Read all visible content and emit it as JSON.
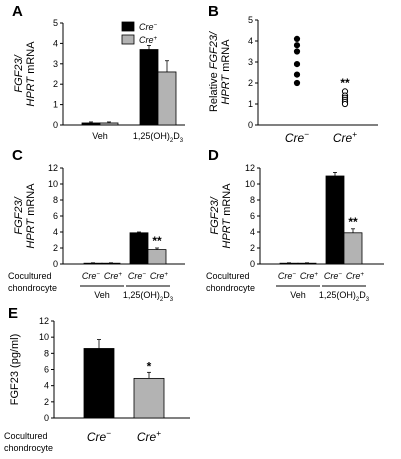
{
  "chart_data": [
    {
      "panel": "A",
      "type": "bar",
      "ylabel": "FGF23/ HPRT mRNA",
      "ylabel_parts": [
        "FGF23/",
        "HPRT",
        "mRNA"
      ],
      "ylim": [
        0,
        5
      ],
      "yticks": [
        "0",
        "1",
        "2",
        "3",
        "4",
        "5"
      ],
      "groups": [
        "Veh",
        "1,25(OH)2D3"
      ],
      "group_labels": [
        {
          "base": "Veh"
        },
        {
          "base": "1,25(OH)",
          "sub": "2",
          "tail": "D",
          "sub2": "3"
        }
      ],
      "legend": [
        {
          "name": "Cre−",
          "sup": "−",
          "color": "#000000"
        },
        {
          "name": "Cre+",
          "sup": "+",
          "color": "#b3b3b3"
        }
      ],
      "series": [
        {
          "name": "Cre−",
          "values": [
            0.1,
            3.7
          ],
          "errors": [
            0.05,
            0.2
          ]
        },
        {
          "name": "Cre+",
          "values": [
            0.1,
            2.6
          ],
          "errors": [
            0.05,
            0.55
          ]
        }
      ],
      "annotations": []
    },
    {
      "panel": "B",
      "type": "scatter",
      "ylabel": "Relative FGF23/ HPRT mRNA",
      "ylim": [
        0,
        5
      ],
      "yticks": [
        "0",
        "1",
        "2",
        "3",
        "4",
        "5"
      ],
      "categories": [
        "Cre−",
        "Cre+"
      ],
      "points": [
        {
          "category": "Cre−",
          "values": [
            4.1,
            3.8,
            3.5,
            2.9,
            2.4,
            2.0
          ]
        },
        {
          "category": "Cre+",
          "values": [
            1.6,
            1.4,
            1.3,
            1.2,
            1.1,
            1.0
          ]
        }
      ],
      "annotations": [
        {
          "text": "**",
          "category": "Cre+",
          "y": 2.0
        }
      ]
    },
    {
      "panel": "C",
      "type": "bar",
      "ylabel": "FGF23/ HPRT mRNA",
      "ylim": [
        0,
        12
      ],
      "yticks": [
        "0",
        "2",
        "4",
        "6",
        "8",
        "10",
        "12"
      ],
      "row_label": [
        "Cocultured",
        "chondrocyte"
      ],
      "groups": [
        "Veh",
        "1,25(OH)2D3"
      ],
      "series": [
        {
          "name": "Cre−",
          "values": [
            0.1,
            3.9
          ],
          "errors": [
            0.05,
            0.1
          ]
        },
        {
          "name": "Cre+",
          "values": [
            0.1,
            1.8
          ],
          "errors": [
            0.05,
            0.2
          ]
        }
      ],
      "annotations": [
        {
          "text": "**",
          "group": 1,
          "series": 1
        }
      ]
    },
    {
      "panel": "D",
      "type": "bar",
      "ylabel": "FGF23/ HPRT mRNA",
      "ylim": [
        0,
        12
      ],
      "yticks": [
        "0",
        "2",
        "4",
        "6",
        "8",
        "10",
        "12"
      ],
      "row_label": [
        "Cocultured",
        "chondrocyte"
      ],
      "groups": [
        "Veh",
        "1,25(OH)2D3"
      ],
      "series": [
        {
          "name": "Cre−",
          "values": [
            0.1,
            11.0
          ],
          "errors": [
            0.05,
            0.45
          ]
        },
        {
          "name": "Cre+",
          "values": [
            0.1,
            3.9
          ],
          "errors": [
            0.05,
            0.5
          ]
        }
      ],
      "annotations": [
        {
          "text": "**",
          "group": 1,
          "series": 1
        }
      ]
    },
    {
      "panel": "E",
      "type": "bar",
      "ylabel": "FGF23 (pg/ml)",
      "ylim": [
        0,
        12
      ],
      "yticks": [
        "0",
        "2",
        "4",
        "6",
        "8",
        "10",
        "12"
      ],
      "row_label": [
        "Cocultured",
        "chondrocyte"
      ],
      "categories": [
        "Cre−",
        "Cre+"
      ],
      "values": [
        8.6,
        4.9
      ],
      "errors": [
        1.1,
        0.75
      ],
      "colors": [
        "#000000",
        "#b3b3b3"
      ],
      "annotations": [
        {
          "text": "*",
          "category": "Cre+"
        }
      ]
    }
  ]
}
